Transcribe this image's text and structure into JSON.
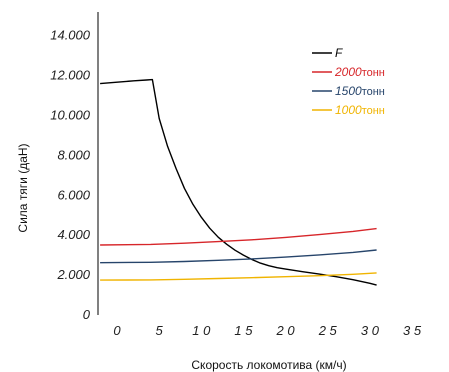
{
  "chart_data": {
    "type": "line",
    "title": "",
    "xlabel": "Скорость локомотива (км/ч)",
    "ylabel": "Сила тяги (даН)",
    "xlim": [
      -4,
      36
    ],
    "ylim": [
      0,
      15000
    ],
    "x_ticks": [
      {
        "value": 0,
        "label": "0"
      },
      {
        "value": 5,
        "label": "5"
      },
      {
        "value": 10,
        "label": "1 0"
      },
      {
        "value": 15,
        "label": "1 5"
      },
      {
        "value": 20,
        "label": "2 0"
      },
      {
        "value": 25,
        "label": "2 5"
      },
      {
        "value": 30,
        "label": "3 0"
      },
      {
        "value": 35,
        "label": "3 5"
      }
    ],
    "y_ticks": [
      {
        "value": 0,
        "label": "0"
      },
      {
        "value": 2000,
        "label": "2.000"
      },
      {
        "value": 4000,
        "label": "4.000"
      },
      {
        "value": 6000,
        "label": "6.000"
      },
      {
        "value": 8000,
        "label": "8.000"
      },
      {
        "value": 10000,
        "label": "10.000"
      },
      {
        "value": 12000,
        "label": "12.000"
      },
      {
        "value": 14000,
        "label": "14.000"
      }
    ],
    "grid": false,
    "legend_position": "top-right",
    "series": [
      {
        "name": "F",
        "unit": "",
        "color": "#000000",
        "points": [
          [
            -2,
            11550
          ],
          [
            0,
            11620
          ],
          [
            2,
            11690
          ],
          [
            3.5,
            11730
          ],
          [
            4.2,
            11750
          ],
          [
            5,
            9800
          ],
          [
            6,
            8400
          ],
          [
            7,
            7300
          ],
          [
            8,
            6300
          ],
          [
            9,
            5500
          ],
          [
            10,
            4850
          ],
          [
            11,
            4300
          ],
          [
            12,
            3850
          ],
          [
            13,
            3500
          ],
          [
            14,
            3200
          ],
          [
            15,
            2950
          ],
          [
            16,
            2730
          ],
          [
            17,
            2550
          ],
          [
            18,
            2420
          ],
          [
            19,
            2320
          ],
          [
            20,
            2250
          ],
          [
            22,
            2120
          ],
          [
            24,
            2000
          ],
          [
            26,
            1870
          ],
          [
            28,
            1720
          ],
          [
            30,
            1540
          ],
          [
            30.8,
            1450
          ]
        ]
      },
      {
        "name": "2000",
        "unit": "тонн",
        "color": "#d7262a",
        "points": [
          [
            -2,
            3460
          ],
          [
            4,
            3490
          ],
          [
            8,
            3550
          ],
          [
            12,
            3630
          ],
          [
            16,
            3720
          ],
          [
            20,
            3840
          ],
          [
            24,
            3980
          ],
          [
            28,
            4140
          ],
          [
            30.8,
            4280
          ]
        ]
      },
      {
        "name": "1500",
        "unit": "тонн",
        "color": "#27456b",
        "points": [
          [
            -2,
            2570
          ],
          [
            4,
            2590
          ],
          [
            8,
            2630
          ],
          [
            12,
            2690
          ],
          [
            16,
            2760
          ],
          [
            20,
            2850
          ],
          [
            24,
            2960
          ],
          [
            28,
            3090
          ],
          [
            30.8,
            3210
          ]
        ]
      },
      {
        "name": "1000",
        "unit": "тонн",
        "color": "#f0b400",
        "points": [
          [
            -2,
            1700
          ],
          [
            4,
            1710
          ],
          [
            8,
            1740
          ],
          [
            12,
            1780
          ],
          [
            16,
            1820
          ],
          [
            20,
            1870
          ],
          [
            24,
            1920
          ],
          [
            28,
            1990
          ],
          [
            30.8,
            2060
          ]
        ]
      }
    ]
  }
}
